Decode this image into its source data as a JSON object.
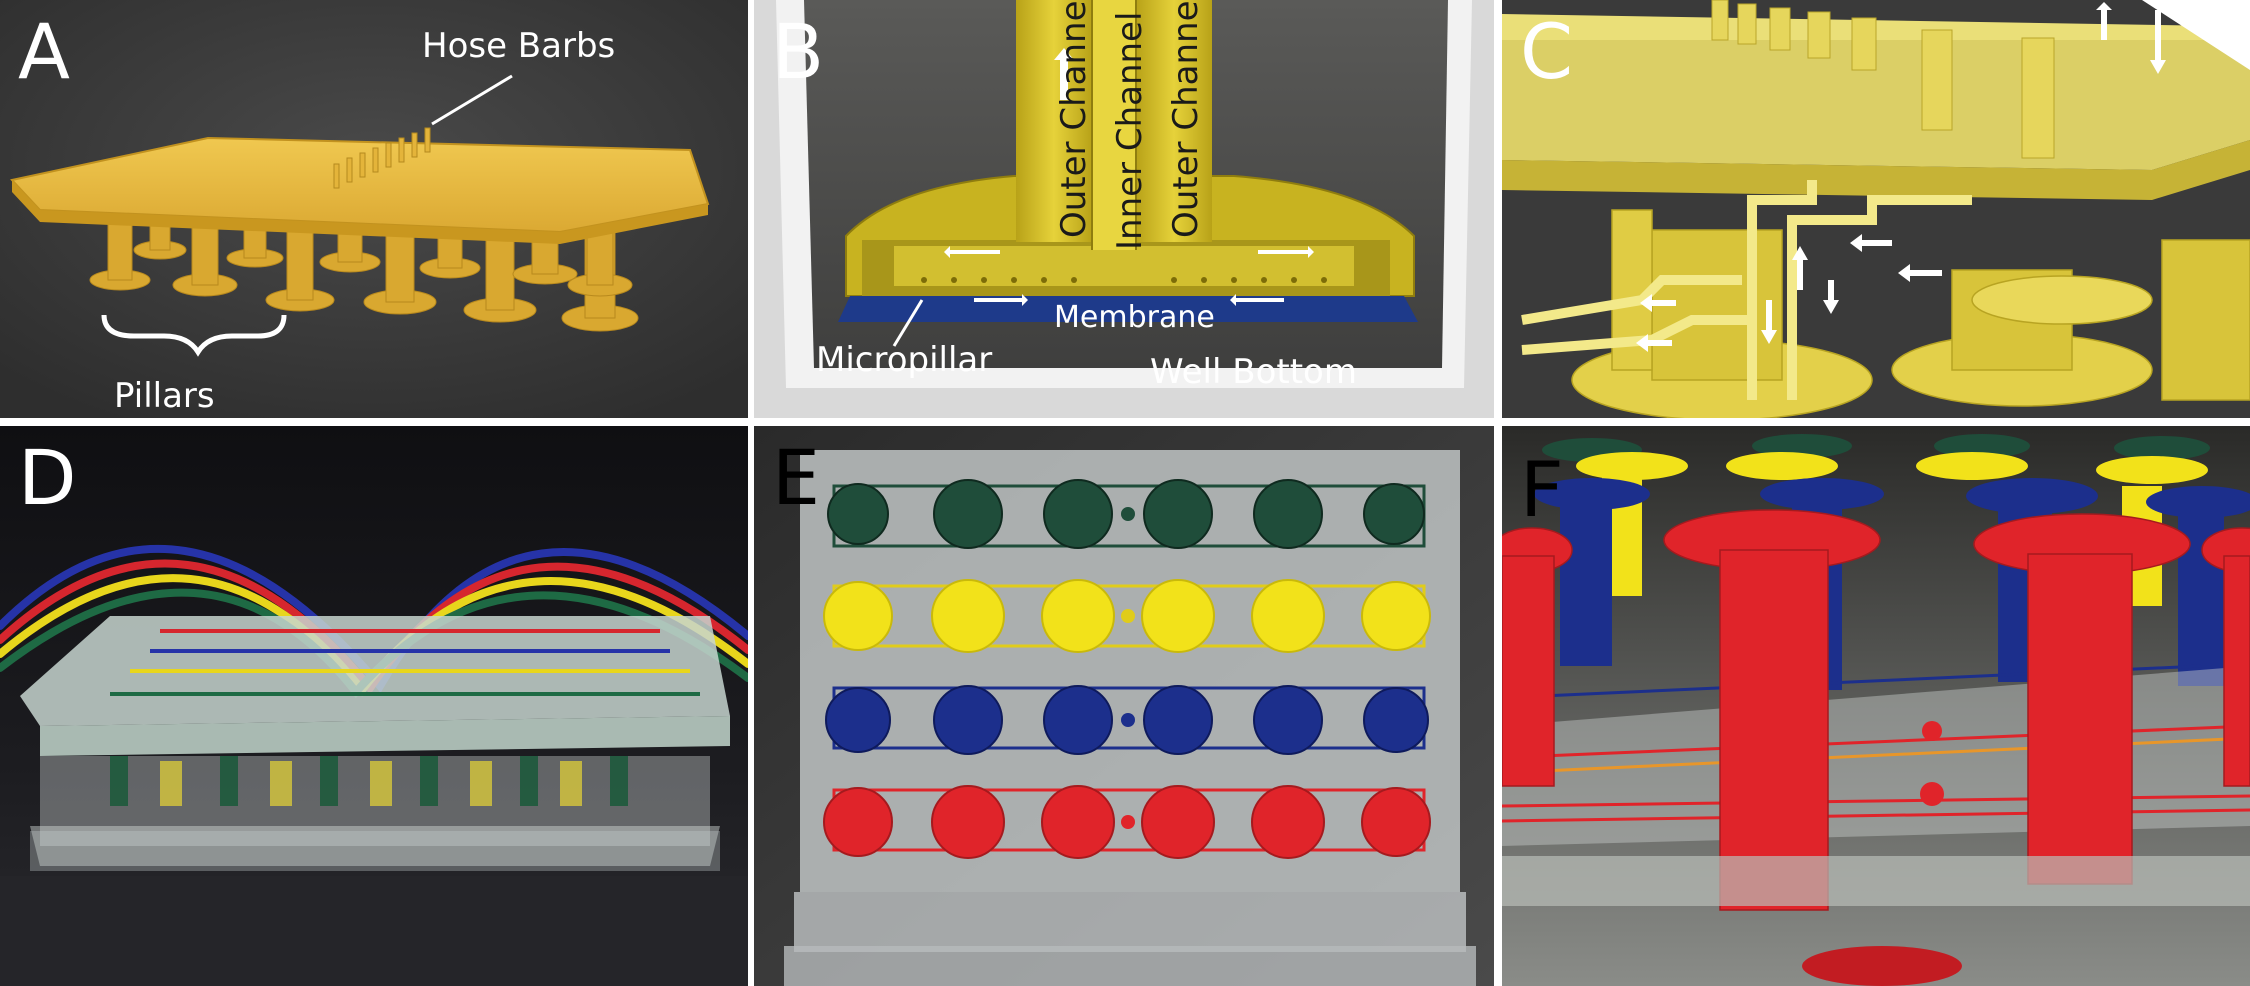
{
  "panels": [
    {
      "label": "A",
      "annotations": [
        "Hose Barbs",
        "Pillars"
      ]
    },
    {
      "label": "B",
      "annotations": [
        "Outer Channel",
        "Inner Channel",
        "Outer Channel",
        "Membrane",
        "Micropillar",
        "Well Bottom"
      ]
    },
    {
      "label": "C"
    },
    {
      "label": "D"
    },
    {
      "label": "E"
    },
    {
      "label": "F"
    }
  ],
  "colors": {
    "render_yellow": "#e8c040",
    "render_background": "#3b3b3b",
    "membrane_blue": "#1e3a8a",
    "channel_dark_green": "#1f4d3a",
    "channel_yellow": "#f2e21a",
    "channel_blue": "#1c2f8c",
    "channel_red": "#e0242a"
  }
}
